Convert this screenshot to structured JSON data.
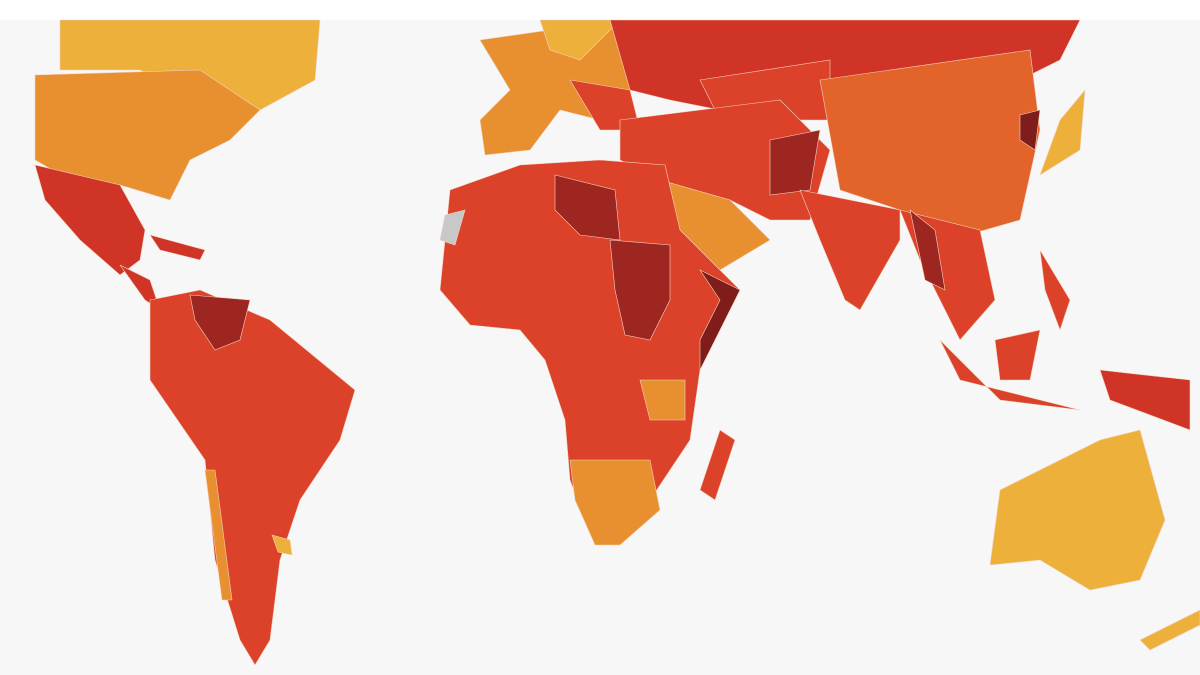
{
  "map": {
    "colors": [
      "#edb03a",
      "#e8902f",
      "#e3642b",
      "#dc4229",
      "#cf3427",
      "#9e2620",
      "#7e1d1a",
      "#c8c8c8"
    ]
  }
}
